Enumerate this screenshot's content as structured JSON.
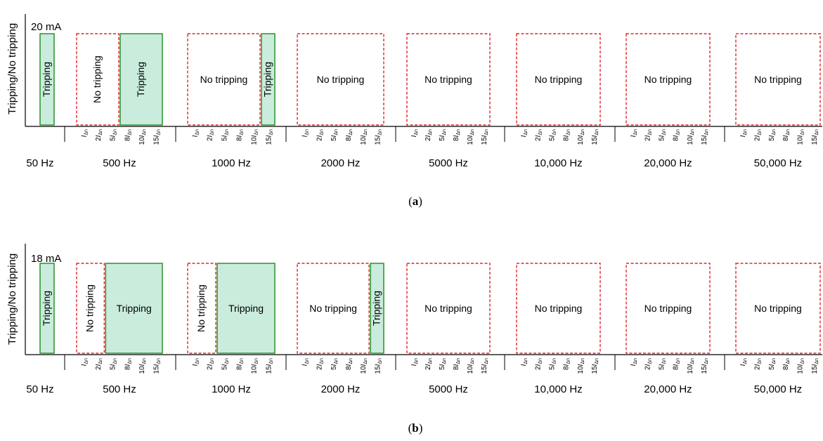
{
  "chart_data": [
    {
      "type": "table",
      "panel_label": "a",
      "ylabel": "Tripping/No tripping",
      "threshold_label": "20 mA",
      "tick_labels": [
        {
          "pre": "",
          "sym": "I",
          "sub": "Δn"
        },
        {
          "pre": "2",
          "sym": "I",
          "sub": "Δn"
        },
        {
          "pre": "5",
          "sym": "I",
          "sub": "Δn"
        },
        {
          "pre": "8",
          "sym": "I",
          "sub": "Δn"
        },
        {
          "pre": "10",
          "sym": "I",
          "sub": "Δn"
        },
        {
          "pre": "15",
          "sym": "I",
          "sub": "Δn"
        }
      ],
      "frequencies": [
        {
          "label": "50 Hz",
          "has_ticks": false,
          "results": [
            {
              "state": "Tripping",
              "from": 0,
              "to": 0
            }
          ]
        },
        {
          "label": "500 Hz",
          "has_ticks": true,
          "results": [
            {
              "state": "No tripping",
              "from": 0,
              "to": 2
            },
            {
              "state": "Tripping",
              "from": 3,
              "to": 5
            }
          ]
        },
        {
          "label": "1000 Hz",
          "has_ticks": true,
          "results": [
            {
              "state": "No tripping",
              "from": 0,
              "to": 4
            },
            {
              "state": "Tripping",
              "from": 5,
              "to": 5
            }
          ]
        },
        {
          "label": "2000 Hz",
          "has_ticks": true,
          "results": [
            {
              "state": "No tripping",
              "from": 0,
              "to": 5
            }
          ]
        },
        {
          "label": "5000 Hz",
          "has_ticks": true,
          "results": [
            {
              "state": "No tripping",
              "from": 0,
              "to": 5
            }
          ]
        },
        {
          "label": "10,000 Hz",
          "has_ticks": true,
          "results": [
            {
              "state": "No tripping",
              "from": 0,
              "to": 5
            }
          ]
        },
        {
          "label": "20,000 Hz",
          "has_ticks": true,
          "results": [
            {
              "state": "No tripping",
              "from": 0,
              "to": 5
            }
          ]
        },
        {
          "label": "50,000 Hz",
          "has_ticks": true,
          "results": [
            {
              "state": "No tripping",
              "from": 0,
              "to": 5
            }
          ]
        }
      ]
    },
    {
      "type": "table",
      "panel_label": "b",
      "ylabel": "Tripping/No tripping",
      "threshold_label": "18 mA",
      "tick_labels": [
        {
          "pre": "",
          "sym": "I",
          "sub": "Δn"
        },
        {
          "pre": "2",
          "sym": "I",
          "sub": "Δn"
        },
        {
          "pre": "5",
          "sym": "I",
          "sub": "Δn"
        },
        {
          "pre": "8",
          "sym": "I",
          "sub": "Δn"
        },
        {
          "pre": "10",
          "sym": "I",
          "sub": "Δn"
        },
        {
          "pre": "15",
          "sym": "I",
          "sub": "Δn"
        }
      ],
      "frequencies": [
        {
          "label": "50 Hz",
          "has_ticks": false,
          "results": [
            {
              "state": "Tripping",
              "from": 0,
              "to": 0
            }
          ]
        },
        {
          "label": "500 Hz",
          "has_ticks": true,
          "results": [
            {
              "state": "No tripping",
              "from": 0,
              "to": 1
            },
            {
              "state": "Tripping",
              "from": 2,
              "to": 5
            }
          ]
        },
        {
          "label": "1000 Hz",
          "has_ticks": true,
          "results": [
            {
              "state": "No tripping",
              "from": 0,
              "to": 1
            },
            {
              "state": "Tripping",
              "from": 2,
              "to": 5
            }
          ]
        },
        {
          "label": "2000 Hz",
          "has_ticks": true,
          "results": [
            {
              "state": "No tripping",
              "from": 0,
              "to": 4
            },
            {
              "state": "Tripping",
              "from": 5,
              "to": 5
            }
          ]
        },
        {
          "label": "5000 Hz",
          "has_ticks": true,
          "results": [
            {
              "state": "No tripping",
              "from": 0,
              "to": 5
            }
          ]
        },
        {
          "label": "10,000 Hz",
          "has_ticks": true,
          "results": [
            {
              "state": "No tripping",
              "from": 0,
              "to": 5
            }
          ]
        },
        {
          "label": "20,000 Hz",
          "has_ticks": true,
          "results": [
            {
              "state": "No tripping",
              "from": 0,
              "to": 5
            }
          ]
        },
        {
          "label": "50,000 Hz",
          "has_ticks": true,
          "results": [
            {
              "state": "No tripping",
              "from": 0,
              "to": 5
            }
          ]
        }
      ]
    }
  ],
  "colors": {
    "tripping_fill": "#c9ecdd",
    "tripping_stroke": "#1f8a1f",
    "no_tripping_stroke": "#e3262a",
    "axis": "#000000"
  }
}
